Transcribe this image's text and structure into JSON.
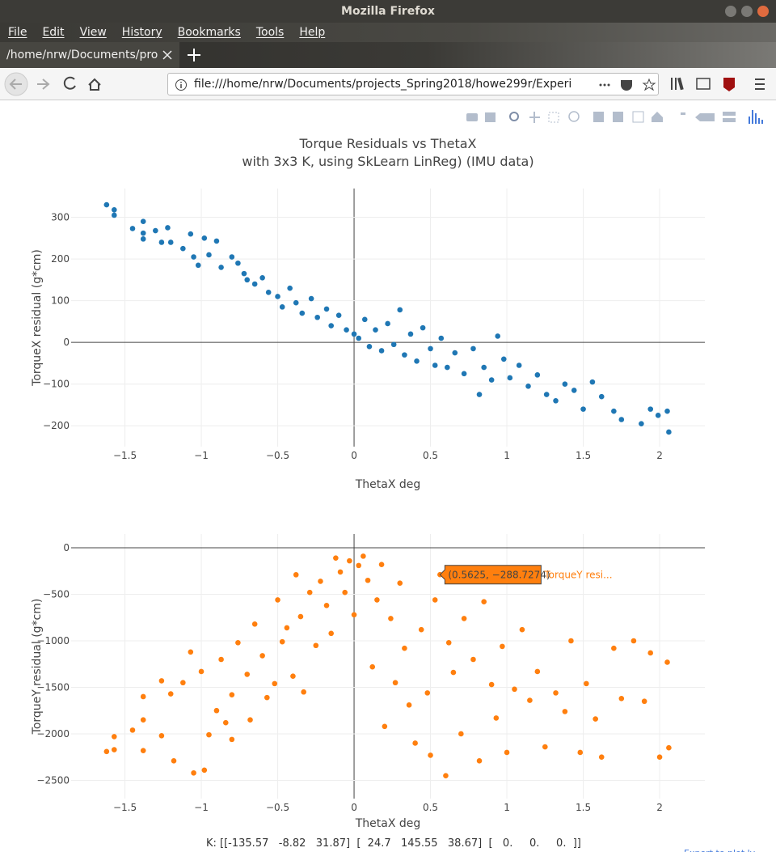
{
  "window_title": "Mozilla Firefox",
  "menu": [
    "File",
    "Edit",
    "View",
    "History",
    "Bookmarks",
    "Tools",
    "Help"
  ],
  "tab_title": "/home/nrw/Documents/pro",
  "url": "file:///home/nrw/Documents/projects_Spring2018/howe299r/Experi",
  "footer": "K: [[-135.57   -8.82   31.87]  [  24.7   145.55   38.67]  [   0.     0.     0.  ]]",
  "export_link": "Export to plot.ly",
  "chart_data": [
    {
      "type": "scatter",
      "title": "Torque Residuals vs ThetaX",
      "subtitle": "with 3x3 K, using SkLearn LinReg) (IMU data)",
      "xlabel": "ThetaX deg",
      "ylabel": "TorqueX residual (g*cm)",
      "color": "#1f77b4",
      "grid": true,
      "xlim": [
        -1.852,
        2.296
      ],
      "ylim": [
        -250,
        369
      ],
      "xticks": [
        {
          "value": -1.5,
          "label": "−1.5"
        },
        {
          "value": -1,
          "label": "−1"
        },
        {
          "value": -0.5,
          "label": "−0.5"
        },
        0,
        0.5,
        1,
        1.5,
        2
      ],
      "yticks": [
        {
          "value": -200,
          "label": "−200"
        },
        {
          "value": -100,
          "label": "−100"
        },
        0,
        100,
        200,
        300
      ],
      "x": [
        -1.62,
        -1.57,
        -1.57,
        -1.45,
        -1.38,
        -1.38,
        -1.38,
        -1.3,
        -1.26,
        -1.22,
        -1.2,
        -1.12,
        -1.07,
        -1.05,
        -1.02,
        -0.98,
        -0.95,
        -0.9,
        -0.87,
        -0.8,
        -0.76,
        -0.72,
        -0.7,
        -0.65,
        -0.6,
        -0.56,
        -0.5,
        -0.47,
        -0.42,
        -0.38,
        -0.34,
        -0.28,
        -0.24,
        -0.18,
        -0.15,
        -0.1,
        -0.05,
        0,
        0.03,
        0.07,
        0.1,
        0.14,
        0.18,
        0.22,
        0.26,
        0.3,
        0.33,
        0.37,
        0.41,
        0.45,
        0.5,
        0.53,
        0.57,
        0.61,
        0.66,
        0.72,
        0.78,
        0.82,
        0.85,
        0.9,
        0.94,
        0.98,
        1.02,
        1.08,
        1.14,
        1.2,
        1.26,
        1.32,
        1.38,
        1.44,
        1.5,
        1.56,
        1.62,
        1.7,
        1.75,
        1.88,
        1.94,
        1.99,
        2.05,
        2.06
      ],
      "values": [
        330,
        318,
        305,
        273,
        290,
        262,
        248,
        268,
        240,
        275,
        240,
        225,
        260,
        205,
        185,
        250,
        210,
        243,
        180,
        205,
        190,
        165,
        150,
        140,
        155,
        120,
        110,
        85,
        130,
        95,
        70,
        105,
        60,
        80,
        40,
        65,
        30,
        20,
        10,
        55,
        -10,
        30,
        -20,
        45,
        -5,
        78,
        -30,
        20,
        -45,
        35,
        -15,
        -55,
        10,
        -60,
        -25,
        -75,
        -15,
        -125,
        -60,
        -90,
        15,
        -40,
        -85,
        -55,
        -105,
        -78,
        -125,
        -140,
        -100,
        -115,
        -160,
        -95,
        -130,
        -165,
        -185,
        -195,
        -160,
        -175,
        -165,
        -215
      ]
    },
    {
      "type": "scatter",
      "xlabel": "ThetaX deg",
      "ylabel": "TorqueY residual (g*cm)",
      "color": "#ff7f0e",
      "grid": true,
      "xlim": [
        -1.852,
        2.296
      ],
      "ylim": [
        -2696,
        148
      ],
      "xticks": [
        {
          "value": -1.5,
          "label": "−1.5"
        },
        {
          "value": -1,
          "label": "−1"
        },
        {
          "value": -0.5,
          "label": "−0.5"
        },
        0,
        0.5,
        1,
        1.5,
        2
      ],
      "yticks": [
        {
          "value": -2500,
          "label": "−2500"
        },
        {
          "value": -2000,
          "label": "−2000"
        },
        {
          "value": -1500,
          "label": "−1500"
        },
        {
          "value": -1000,
          "label": "−1000"
        },
        {
          "value": -500,
          "label": "−500"
        },
        0
      ],
      "x": [
        -1.62,
        -1.57,
        -1.57,
        -1.45,
        -1.38,
        -1.38,
        -1.38,
        -1.26,
        -1.26,
        -1.2,
        -1.18,
        -1.12,
        -1.07,
        -1.05,
        -1.0,
        -0.98,
        -0.95,
        -0.9,
        -0.87,
        -0.84,
        -0.8,
        -0.8,
        -0.76,
        -0.7,
        -0.68,
        -0.65,
        -0.6,
        -0.57,
        -0.52,
        -0.5,
        -0.47,
        -0.44,
        -0.4,
        -0.38,
        -0.35,
        -0.33,
        -0.29,
        -0.25,
        -0.22,
        -0.18,
        -0.15,
        -0.12,
        -0.09,
        -0.06,
        -0.03,
        0.0,
        0.03,
        0.06,
        0.09,
        0.12,
        0.15,
        0.18,
        0.2,
        0.24,
        0.27,
        0.3,
        0.33,
        0.36,
        0.4,
        0.44,
        0.48,
        0.5,
        0.53,
        0.5625,
        0.6,
        0.62,
        0.65,
        0.7,
        0.72,
        0.78,
        0.82,
        0.85,
        0.9,
        0.93,
        0.97,
        1.0,
        1.05,
        1.1,
        1.15,
        1.2,
        1.25,
        1.32,
        1.38,
        1.42,
        1.48,
        1.52,
        1.58,
        1.62,
        1.7,
        1.75,
        1.83,
        1.9,
        1.94,
        2.0,
        2.05,
        2.06
      ],
      "values": [
        -2190,
        -2030,
        -2170,
        -1960,
        -1600,
        -1850,
        -2180,
        -1430,
        -2020,
        -1570,
        -2290,
        -1450,
        -1120,
        -2420,
        -1330,
        -2390,
        -2010,
        -1750,
        -1200,
        -1880,
        -1580,
        -2060,
        -1020,
        -1360,
        -1850,
        -820,
        -1160,
        -1610,
        -1460,
        -560,
        -1010,
        -860,
        -1380,
        -290,
        -740,
        -1550,
        -480,
        -1050,
        -360,
        -620,
        -920,
        -110,
        -260,
        -480,
        -140,
        -720,
        -190,
        -90,
        -350,
        -1280,
        -560,
        -180,
        -1920,
        -760,
        -1450,
        -380,
        -1080,
        -1690,
        -2100,
        -880,
        -1560,
        -2230,
        -560,
        -288.7274,
        -2450,
        -1020,
        -1340,
        -2000,
        -760,
        -1200,
        -2290,
        -580,
        -1470,
        -1830,
        -1060,
        -2200,
        -1520,
        -880,
        -1640,
        -1330,
        -2140,
        -1560,
        -1760,
        -1000,
        -2200,
        -1460,
        -1840,
        -2250,
        -1080,
        -1620,
        -1000,
        -1650,
        -1130,
        -2250,
        -1230,
        -2150
      ],
      "hover": {
        "x": 0.5625,
        "y": -288.7274,
        "label": "(0.5625, −288.7274)",
        "name": "TorqueY resi..."
      }
    }
  ]
}
